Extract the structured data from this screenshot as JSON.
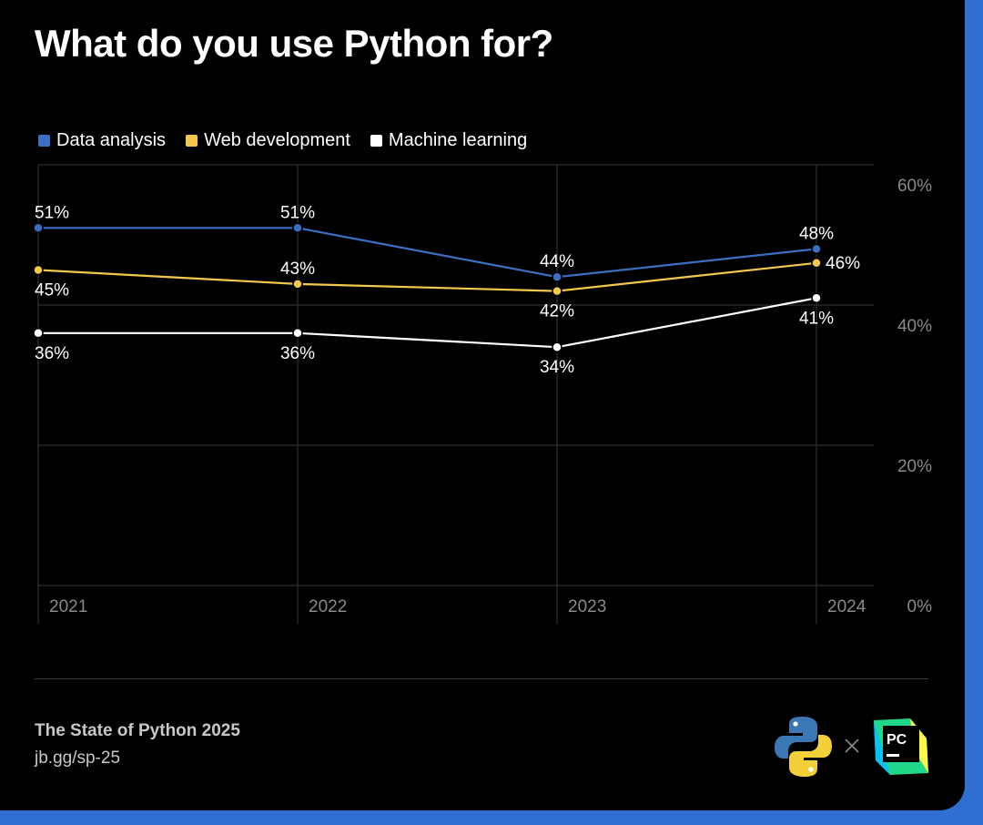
{
  "title": "What do you use Python for?",
  "footer": {
    "source": "The State of Python 2025",
    "link": "jb.gg/sp-25",
    "logos": [
      "python-logo",
      "pycharm-logo"
    ],
    "pycharm_text": "PC"
  },
  "colors": {
    "background": "#000000",
    "accent": "#2f6fd1",
    "data_analysis": "#3b6fc4",
    "web_development": "#f2c94c",
    "machine_learning": "#ffffff"
  },
  "chart_data": {
    "type": "line",
    "x": [
      "2021",
      "2022",
      "2023",
      "2024"
    ],
    "series": [
      {
        "name": "Data analysis",
        "values": [
          51,
          51,
          44,
          48
        ],
        "color": "#3b6fc4",
        "label_pos": [
          "above",
          "above",
          "above",
          "above"
        ]
      },
      {
        "name": "Web development",
        "values": [
          45,
          43,
          42,
          46
        ],
        "color": "#f2c94c",
        "label_pos": [
          "below",
          "above",
          "below",
          "right"
        ]
      },
      {
        "name": "Machine learning",
        "values": [
          36,
          36,
          34,
          41
        ],
        "color": "#ffffff",
        "label_pos": [
          "below",
          "below",
          "below",
          "below"
        ]
      }
    ],
    "data_labels": [
      [
        "51%",
        "51%",
        "44%",
        "48%"
      ],
      [
        "45%",
        "43%",
        "42%",
        "46%"
      ],
      [
        "36%",
        "36%",
        "34%",
        "41%"
      ]
    ],
    "y_ticks": [
      0,
      20,
      40,
      60
    ],
    "y_tick_labels": [
      "0%",
      "20%",
      "40%",
      "60%"
    ],
    "ylim": [
      0,
      60
    ],
    "y_axis_side": "right",
    "grid": true,
    "legend_position": "top-left"
  }
}
